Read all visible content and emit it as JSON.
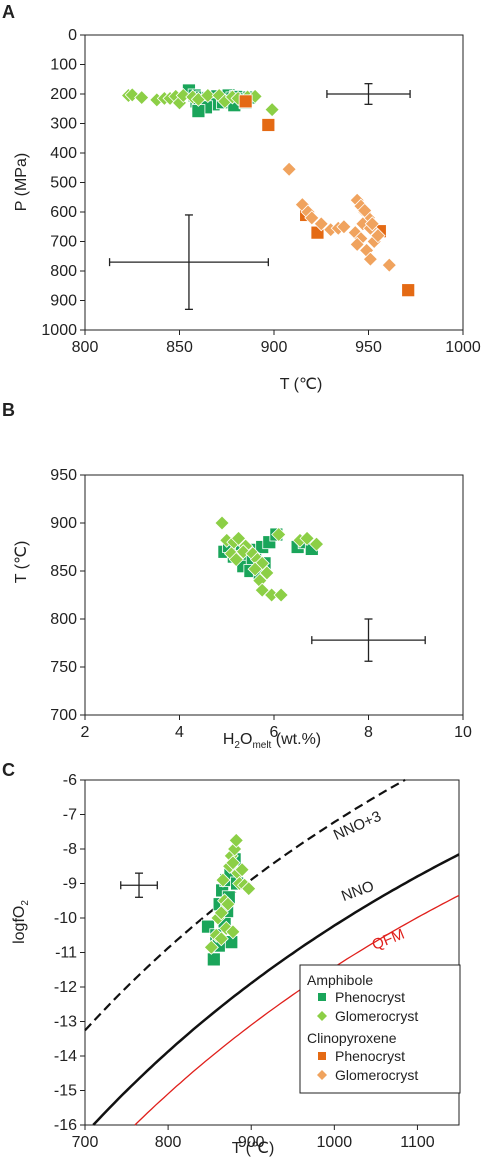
{
  "colors": {
    "amphibole_phenocryst": "#1aa55a",
    "amphibole_glomerocryst": "#8ccf46",
    "cpx_phenocryst": "#e46a14",
    "cpx_glomerocryst": "#f0a35e",
    "qfm_curve": "#e0201c",
    "buffer_curve": "#111111",
    "axis": "#222222"
  },
  "legend": {
    "group1": "Amphibole",
    "group2": "Clinopyroxene",
    "phenocryst": "Phenocryst",
    "glomerocryst": "Glomerocryst"
  },
  "chart_data": [
    {
      "panel": "A",
      "type": "scatter",
      "xlabel": "T (℃)",
      "ylabel": "P (MPa)",
      "xlim": [
        800,
        1000
      ],
      "ylim": [
        0,
        1000
      ],
      "y_inverted": true,
      "xticks": [
        "800",
        "850",
        "900",
        "950",
        "1000"
      ],
      "yticks": [
        "0",
        "100",
        "200",
        "300",
        "400",
        "500",
        "600",
        "700",
        "800",
        "900",
        "1000"
      ],
      "error_bars": [
        {
          "x": 855,
          "y": 770,
          "xerr": 42,
          "yerr": 160
        },
        {
          "x": 950,
          "y": 200,
          "xerr": 22,
          "yerr": 35
        }
      ],
      "series": [
        {
          "name": "Amphibole Phenocryst",
          "marker": "square",
          "color_key": "amphibole_phenocryst",
          "points": [
            [
              855,
              188
            ],
            [
              858,
              205
            ],
            [
              862,
              212
            ],
            [
              865,
              215
            ],
            [
              868,
              210
            ],
            [
              870,
              208
            ],
            [
              872,
              218
            ],
            [
              874,
              212
            ],
            [
              876,
              205
            ],
            [
              878,
              215
            ],
            [
              880,
              210
            ],
            [
              882,
              220
            ],
            [
              884,
              218
            ],
            [
              887,
              212
            ],
            [
              868,
              235
            ],
            [
              873,
              228
            ],
            [
              859,
              225
            ],
            [
              864,
              245
            ],
            [
              860,
              258
            ],
            [
              879,
              238
            ],
            [
              885,
              228
            ]
          ]
        },
        {
          "name": "Amphibole Glomerocryst",
          "marker": "diamond",
          "color_key": "amphibole_glomerocryst",
          "points": [
            [
              823,
              205
            ],
            [
              825,
              203
            ],
            [
              830,
              212
            ],
            [
              838,
              220
            ],
            [
              842,
              215
            ],
            [
              845,
              215
            ],
            [
              848,
              208
            ],
            [
              850,
              230
            ],
            [
              852,
              205
            ],
            [
              857,
              210
            ],
            [
              860,
              218
            ],
            [
              865,
              205
            ],
            [
              871,
              205
            ],
            [
              874,
              225
            ],
            [
              878,
              210
            ],
            [
              881,
              215
            ],
            [
              886,
              210
            ],
            [
              890,
              208
            ],
            [
              899,
              253
            ]
          ]
        },
        {
          "name": "Clinopyroxene Phenocryst",
          "marker": "square",
          "color_key": "cpx_phenocryst",
          "points": [
            [
              885,
              225
            ],
            [
              897,
              305
            ],
            [
              917,
              610
            ],
            [
              923,
              670
            ],
            [
              956,
              665
            ],
            [
              971,
              865
            ]
          ]
        },
        {
          "name": "Clinopyroxene Glomerocryst",
          "marker": "diamond",
          "color_key": "cpx_glomerocryst",
          "points": [
            [
              908,
              455
            ],
            [
              915,
              575
            ],
            [
              918,
              600
            ],
            [
              920,
              620
            ],
            [
              925,
              640
            ],
            [
              930,
              660
            ],
            [
              934,
              655
            ],
            [
              937,
              650
            ],
            [
              944,
              560
            ],
            [
              946,
              580
            ],
            [
              948,
              600
            ],
            [
              950,
              620
            ],
            [
              947,
              640
            ],
            [
              951,
              655
            ],
            [
              943,
              670
            ],
            [
              946,
              690
            ],
            [
              944,
              710
            ],
            [
              949,
              730
            ],
            [
              951,
              760
            ],
            [
              953,
              700
            ],
            [
              955,
              680
            ],
            [
              961,
              780
            ],
            [
              948,
              595
            ],
            [
              952,
              640
            ]
          ]
        }
      ]
    },
    {
      "panel": "B",
      "type": "scatter",
      "xlabel_main": "H",
      "xlabel_sub1": "2",
      "xlabel_mid": "O",
      "xlabel_sub2": "melt",
      "xlabel_tail": " (wt.%)",
      "ylabel": "T (℃)",
      "xlim": [
        2,
        10
      ],
      "ylim": [
        700,
        950
      ],
      "xticks": [
        "2",
        "4",
        "6",
        "8",
        "10"
      ],
      "yticks": [
        "700",
        "750",
        "800",
        "850",
        "900",
        "950"
      ],
      "error_bars": [
        {
          "x": 8.0,
          "y": 778,
          "xerr": 1.2,
          "yerr": 22
        }
      ],
      "series": [
        {
          "name": "Amphibole Phenocryst",
          "marker": "square",
          "color_key": "amphibole_phenocryst",
          "points": [
            [
              4.95,
              870
            ],
            [
              5.15,
              865
            ],
            [
              5.35,
              855
            ],
            [
              5.45,
              868
            ],
            [
              5.6,
              872
            ],
            [
              5.75,
              875
            ],
            [
              5.9,
              880
            ],
            [
              6.05,
              888
            ],
            [
              5.25,
              878
            ],
            [
              5.55,
              862
            ],
            [
              5.8,
              858
            ],
            [
              6.5,
              875
            ],
            [
              6.65,
              880
            ],
            [
              6.8,
              873
            ],
            [
              5.5,
              850
            ],
            [
              5.7,
              845
            ],
            [
              5.05,
              876
            ]
          ]
        },
        {
          "name": "Amphibole Glomerocryst",
          "marker": "diamond",
          "color_key": "amphibole_glomerocryst",
          "points": [
            [
              4.9,
              900
            ],
            [
              5.0,
              882
            ],
            [
              5.15,
              880
            ],
            [
              5.25,
              884
            ],
            [
              5.4,
              876
            ],
            [
              5.35,
              870
            ],
            [
              5.55,
              868
            ],
            [
              5.65,
              862
            ],
            [
              5.75,
              858
            ],
            [
              5.85,
              848
            ],
            [
              5.7,
              840
            ],
            [
              5.75,
              830
            ],
            [
              5.95,
              825
            ],
            [
              6.15,
              825
            ],
            [
              5.1,
              868
            ],
            [
              5.6,
              852
            ],
            [
              6.55,
              882
            ],
            [
              6.7,
              884
            ],
            [
              6.9,
              878
            ],
            [
              6.1,
              888
            ],
            [
              5.2,
              862
            ]
          ]
        }
      ]
    },
    {
      "panel": "C",
      "type": "scatter",
      "xlabel": "T (℃)",
      "ylabel_main": "logfO",
      "ylabel_sub": "2",
      "xlim": [
        700,
        1150
      ],
      "ylim": [
        -16,
        -6
      ],
      "xticks": [
        "700",
        "800",
        "900",
        "1000",
        "1100"
      ],
      "yticks": [
        "-6",
        "-7",
        "-8",
        "-9",
        "-10",
        "-11",
        "-12",
        "-13",
        "-14",
        "-15",
        "-16"
      ],
      "curve_labels": {
        "nno3": "NNO+3",
        "nno": "NNO",
        "qfm": "QFM"
      },
      "error_bars": [
        {
          "x": 765,
          "y": -9.05,
          "xerr": 22,
          "yerr": 0.35
        }
      ],
      "series": [
        {
          "name": "Amphibole Phenocryst",
          "marker": "square",
          "color_key": "amphibole_phenocryst",
          "points": [
            [
              848,
              -10.25
            ],
            [
              855,
              -11.2
            ],
            [
              858,
              -10.5
            ],
            [
              862,
              -9.6
            ],
            [
              865,
              -9.2
            ],
            [
              870,
              -8.9
            ],
            [
              868,
              -10.1
            ],
            [
              873,
              -9.4
            ],
            [
              875,
              -8.7
            ],
            [
              880,
              -8.3
            ],
            [
              883,
              -9.0
            ],
            [
              876,
              -10.7
            ],
            [
              861,
              -10.8
            ],
            [
              871,
              -9.8
            ]
          ]
        },
        {
          "name": "Amphibole Glomerocryst",
          "marker": "diamond",
          "color_key": "amphibole_glomerocryst",
          "points": [
            [
              852,
              -10.85
            ],
            [
              858,
              -10.5
            ],
            [
              860,
              -10.0
            ],
            [
              864,
              -9.85
            ],
            [
              866,
              -8.9
            ],
            [
              868,
              -9.5
            ],
            [
              872,
              -9.6
            ],
            [
              874,
              -8.5
            ],
            [
              876,
              -8.2
            ],
            [
              878,
              -8.4
            ],
            [
              880,
              -8.0
            ],
            [
              882,
              -7.75
            ],
            [
              884,
              -8.7
            ],
            [
              886,
              -9.0
            ],
            [
              889,
              -8.6
            ],
            [
              892,
              -9.05
            ],
            [
              897,
              -9.15
            ],
            [
              870,
              -10.3
            ],
            [
              878,
              -10.4
            ],
            [
              864,
              -10.6
            ]
          ]
        }
      ]
    }
  ]
}
